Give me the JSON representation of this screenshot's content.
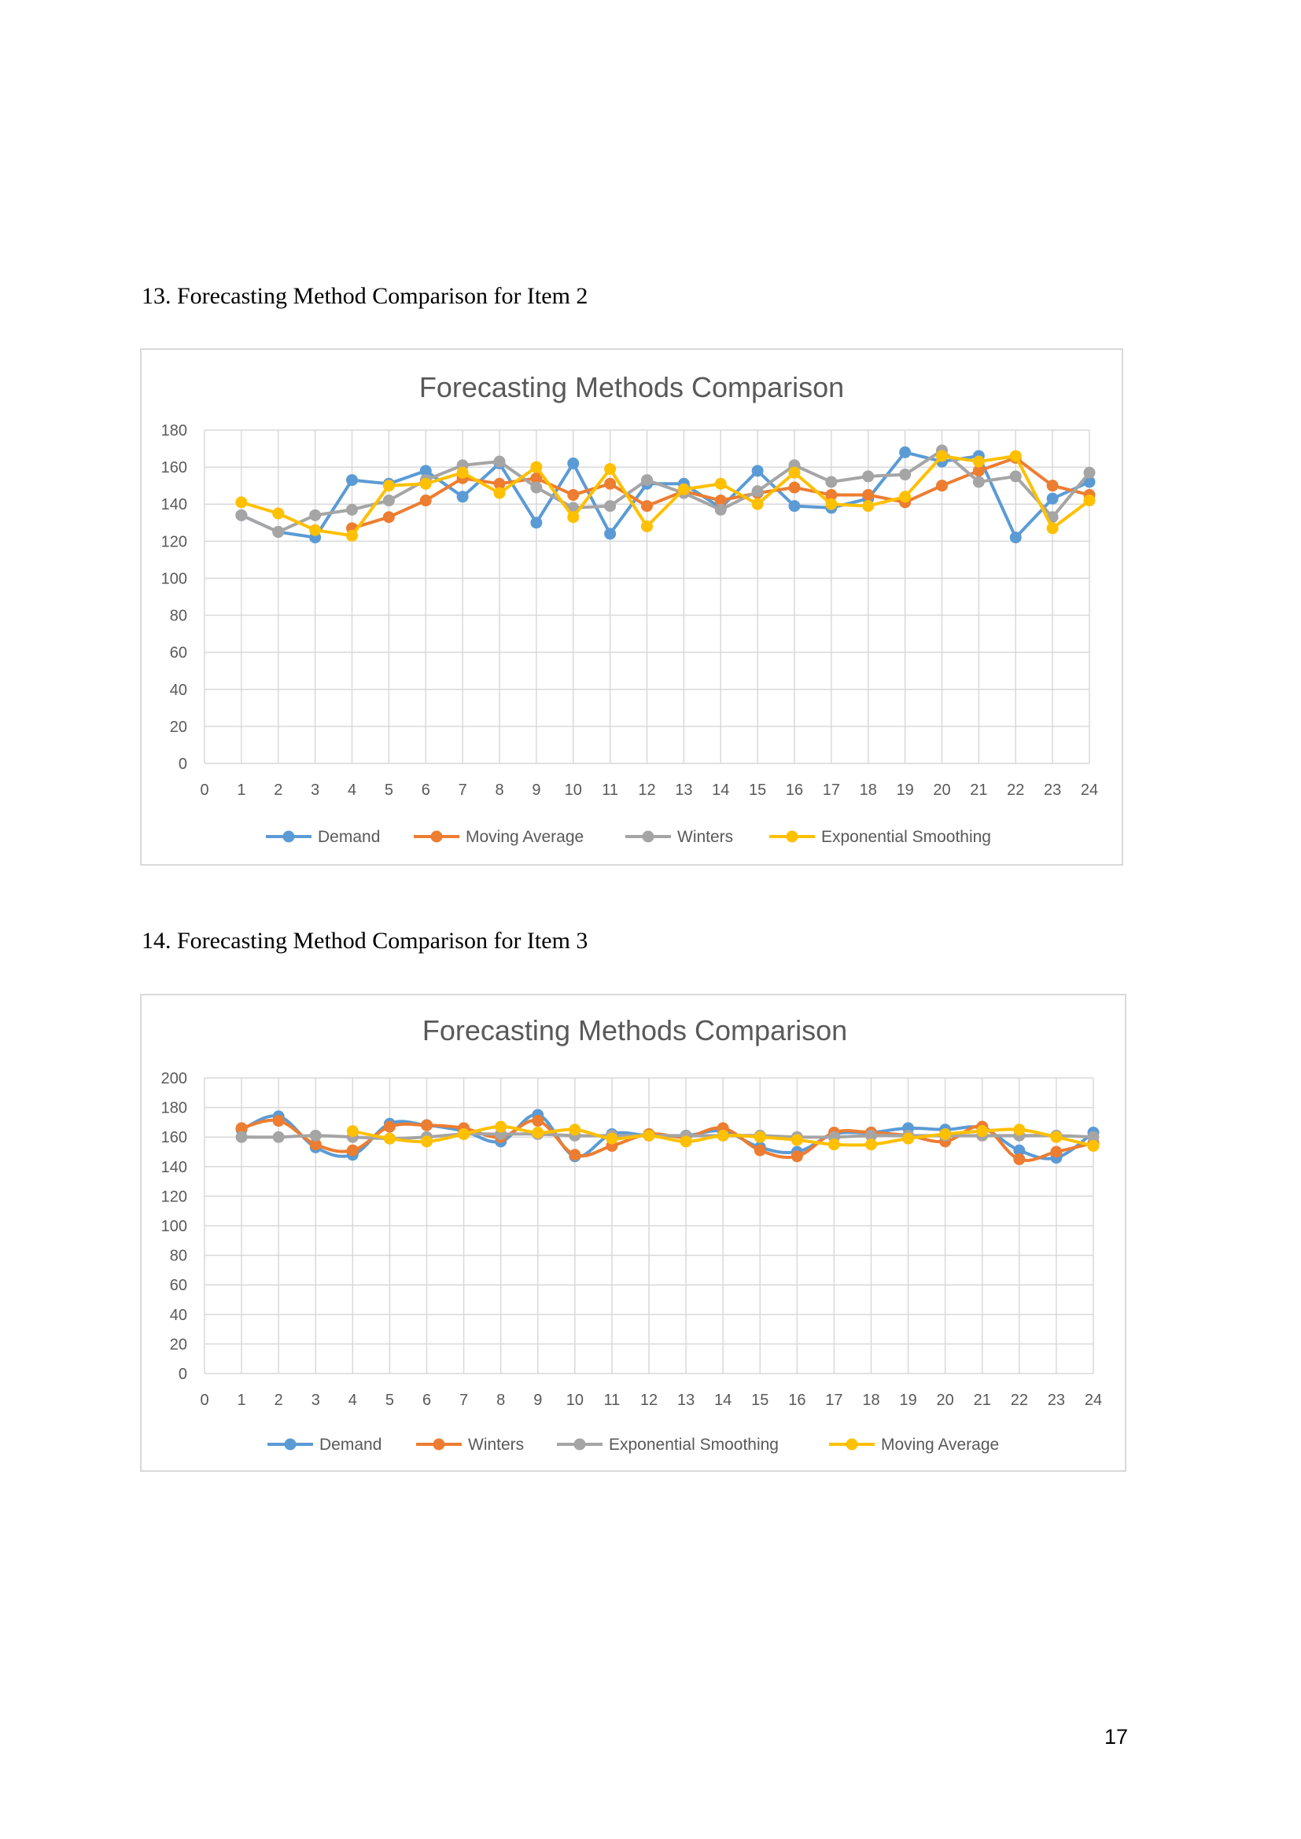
{
  "page": {
    "heading_1": "13. Forecasting Method Comparison for Item 2",
    "heading_2": "14. Forecasting Method Comparison for Item 3",
    "page_number": "17"
  },
  "chart_data": [
    {
      "type": "line",
      "title": "Forecasting Methods Comparison",
      "xlabel": "",
      "ylabel": "",
      "xlim": [
        0,
        24
      ],
      "xticks": [
        0,
        1,
        2,
        3,
        4,
        5,
        6,
        7,
        8,
        9,
        10,
        11,
        12,
        13,
        14,
        15,
        16,
        17,
        18,
        19,
        20,
        21,
        22,
        23,
        24
      ],
      "ylim": [
        0,
        180
      ],
      "yticks": [
        0,
        20,
        40,
        60,
        80,
        100,
        120,
        140,
        160,
        180
      ],
      "grid": true,
      "legend": "bottom",
      "smooth": false,
      "series": [
        {
          "name": "Demand",
          "color": "#5B9BD5",
          "x": [
            1,
            2,
            3,
            4,
            5,
            6,
            7,
            8,
            9,
            10,
            11,
            12,
            13,
            14,
            15,
            16,
            17,
            18,
            19,
            20,
            21,
            22,
            23,
            24
          ],
          "y": [
            134,
            125,
            122,
            153,
            151,
            158,
            144,
            162,
            130,
            162,
            124,
            151,
            151,
            138,
            158,
            139,
            138,
            143,
            168,
            163,
            166,
            122,
            143,
            152
          ]
        },
        {
          "name": "Moving Average",
          "color": "#ED7D31",
          "x": [
            4,
            5,
            6,
            7,
            8,
            9,
            10,
            11,
            12,
            13,
            14,
            15,
            16,
            17,
            18,
            19,
            20,
            21,
            22,
            23,
            24
          ],
          "y": [
            127,
            133,
            142,
            154,
            151,
            154,
            145,
            151,
            139,
            147,
            142,
            146,
            149,
            145,
            145,
            141,
            150,
            158,
            165,
            150,
            145
          ]
        },
        {
          "name": "Winters",
          "color": "#A5A5A5",
          "x": [
            1,
            2,
            3,
            4,
            5,
            6,
            7,
            8,
            9,
            10,
            11,
            12,
            13,
            14,
            15,
            16,
            17,
            18,
            19,
            20,
            21,
            22,
            23,
            24
          ],
          "y": [
            134,
            125,
            134,
            137,
            142,
            153,
            161,
            163,
            149,
            138,
            139,
            153,
            146,
            137,
            147,
            161,
            152,
            155,
            156,
            169,
            152,
            155,
            133,
            157
          ]
        },
        {
          "name": "Exponential Smoothing",
          "color": "#FFC000",
          "x": [
            1,
            2,
            3,
            4,
            5,
            6,
            7,
            8,
            9,
            10,
            11,
            12,
            13,
            14,
            15,
            16,
            17,
            18,
            19,
            20,
            21,
            22,
            23,
            24
          ],
          "y": [
            141,
            135,
            126,
            123,
            150,
            151,
            157,
            146,
            160,
            133,
            159,
            128,
            148,
            151,
            140,
            157,
            140,
            139,
            144,
            166,
            163,
            166,
            127,
            142
          ]
        }
      ]
    },
    {
      "type": "line",
      "title": "Forecasting Methods Comparison",
      "xlabel": "",
      "ylabel": "",
      "xlim": [
        0,
        24
      ],
      "xticks": [
        0,
        1,
        2,
        3,
        4,
        5,
        6,
        7,
        8,
        9,
        10,
        11,
        12,
        13,
        14,
        15,
        16,
        17,
        18,
        19,
        20,
        21,
        22,
        23,
        24
      ],
      "ylim": [
        0,
        200
      ],
      "yticks": [
        0,
        20,
        40,
        60,
        80,
        100,
        120,
        140,
        160,
        180,
        200
      ],
      "grid": true,
      "legend": "bottom",
      "smooth": true,
      "series": [
        {
          "name": "Demand",
          "color": "#5B9BD5",
          "x": [
            1,
            2,
            3,
            4,
            5,
            6,
            7,
            8,
            9,
            10,
            11,
            12,
            13,
            14,
            15,
            16,
            17,
            18,
            19,
            20,
            21,
            22,
            23,
            24
          ],
          "y": [
            165,
            174,
            153,
            148,
            169,
            168,
            164,
            157,
            175,
            147,
            162,
            161,
            161,
            164,
            153,
            150,
            162,
            163,
            166,
            165,
            166,
            151,
            146,
            163
          ]
        },
        {
          "name": "Winters",
          "color": "#ED7D31",
          "x": [
            1,
            2,
            3,
            4,
            5,
            6,
            7,
            8,
            9,
            10,
            11,
            12,
            13,
            14,
            15,
            16,
            17,
            18,
            19,
            20,
            21,
            22,
            23,
            24
          ],
          "y": [
            166,
            171,
            155,
            151,
            167,
            168,
            166,
            160,
            171,
            148,
            154,
            162,
            160,
            166,
            151,
            147,
            163,
            163,
            161,
            157,
            167,
            145,
            150,
            156
          ]
        },
        {
          "name": "Exponential Smoothing",
          "color": "#A5A5A5",
          "x": [
            1,
            2,
            3,
            4,
            5,
            6,
            7,
            8,
            9,
            10,
            11,
            12,
            13,
            14,
            15,
            16,
            17,
            18,
            19,
            20,
            21,
            22,
            23,
            24
          ],
          "y": [
            160,
            160,
            161,
            160,
            159,
            160,
            162,
            162,
            162,
            161,
            161,
            161,
            161,
            161,
            161,
            160,
            160,
            161,
            161,
            161,
            161,
            161,
            161,
            160
          ]
        },
        {
          "name": "Moving Average",
          "color": "#FFC000",
          "x": [
            4,
            5,
            6,
            7,
            8,
            9,
            10,
            11,
            12,
            13,
            14,
            15,
            16,
            17,
            18,
            19,
            20,
            21,
            22,
            23,
            24
          ],
          "y": [
            164,
            159,
            157,
            162,
            167,
            163,
            165,
            159,
            161,
            157,
            161,
            160,
            158,
            155,
            155,
            159,
            162,
            164,
            165,
            160,
            154
          ]
        }
      ]
    }
  ]
}
